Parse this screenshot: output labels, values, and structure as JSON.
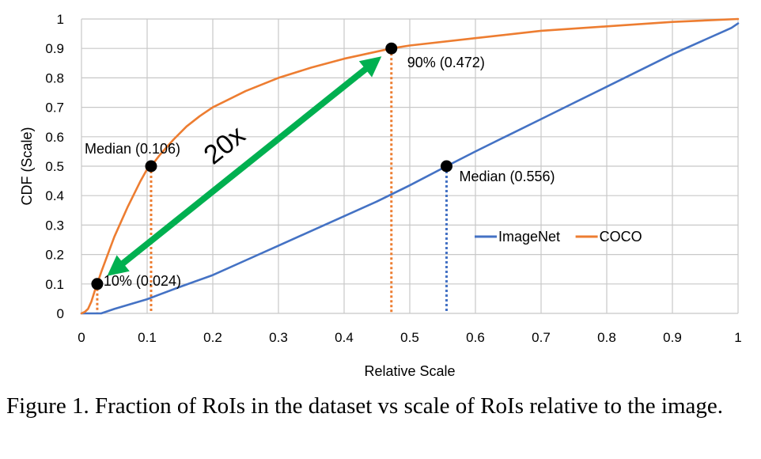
{
  "caption": "Figure 1. Fraction of RoIs in the dataset vs scale of RoIs relative to the image.",
  "chart_data": {
    "type": "line",
    "title": "",
    "xlabel": "Relative Scale",
    "ylabel": "CDF (Scale)",
    "xlim": [
      0,
      1
    ],
    "ylim": [
      0,
      1
    ],
    "grid": true,
    "x_ticks": [
      "0",
      "0.1",
      "0.2",
      "0.3",
      "0.4",
      "0.5",
      "0.6",
      "0.7",
      "0.8",
      "0.9",
      "1"
    ],
    "y_ticks": [
      "0",
      "0.1",
      "0.2",
      "0.3",
      "0.4",
      "0.5",
      "0.6",
      "0.7",
      "0.8",
      "0.9",
      "1"
    ],
    "legend_position": "middle-right",
    "series": [
      {
        "name": "ImageNet",
        "color": "#4472C4",
        "x": [
          0,
          0.03,
          0.05,
          0.08,
          0.1,
          0.12,
          0.15,
          0.2,
          0.25,
          0.3,
          0.35,
          0.4,
          0.45,
          0.5,
          0.556,
          0.6,
          0.65,
          0.7,
          0.75,
          0.8,
          0.85,
          0.9,
          0.95,
          0.98,
          0.99,
          1.0
        ],
        "y": [
          0.0,
          0.0,
          0.015,
          0.035,
          0.048,
          0.065,
          0.09,
          0.13,
          0.18,
          0.23,
          0.28,
          0.33,
          0.38,
          0.435,
          0.5,
          0.55,
          0.605,
          0.66,
          0.715,
          0.77,
          0.825,
          0.88,
          0.93,
          0.96,
          0.97,
          0.985
        ]
      },
      {
        "name": "COCO",
        "color": "#ED7D31",
        "x": [
          0,
          0.005,
          0.01,
          0.015,
          0.02,
          0.024,
          0.03,
          0.04,
          0.05,
          0.06,
          0.07,
          0.08,
          0.09,
          0.1,
          0.106,
          0.12,
          0.14,
          0.16,
          0.18,
          0.2,
          0.25,
          0.3,
          0.35,
          0.4,
          0.472,
          0.5,
          0.6,
          0.7,
          0.8,
          0.9,
          1.0
        ],
        "y": [
          0.0,
          0.005,
          0.015,
          0.04,
          0.075,
          0.1,
          0.14,
          0.2,
          0.26,
          0.31,
          0.36,
          0.405,
          0.45,
          0.49,
          0.5,
          0.54,
          0.59,
          0.635,
          0.67,
          0.7,
          0.755,
          0.8,
          0.835,
          0.865,
          0.9,
          0.91,
          0.935,
          0.96,
          0.975,
          0.99,
          1.0
        ]
      }
    ],
    "markers": [
      {
        "x": 0.024,
        "y": 0.1,
        "label": "10% (0.024)",
        "drop_color": "#ED7D31"
      },
      {
        "x": 0.106,
        "y": 0.5,
        "label": "Median (0.106)",
        "drop_color": "#ED7D31"
      },
      {
        "x": 0.472,
        "y": 0.9,
        "label": "90% (0.472)",
        "drop_color": "#ED7D31"
      },
      {
        "x": 0.556,
        "y": 0.5,
        "label": "Median (0.556)",
        "drop_color": "#4472C4"
      }
    ],
    "arrow": {
      "from": {
        "x": 0.024,
        "y": 0.1
      },
      "to": {
        "x": 0.472,
        "y": 0.9
      },
      "color": "#00B050",
      "label": "20x"
    }
  }
}
